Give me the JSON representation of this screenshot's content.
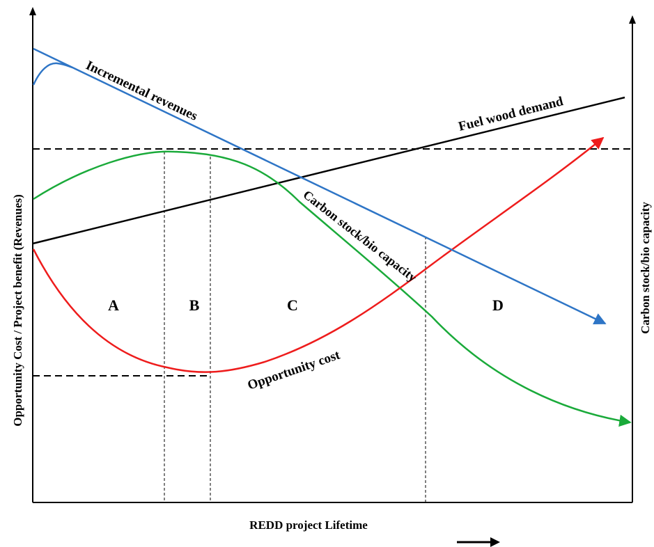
{
  "title": "",
  "axes": {
    "y_left_label": "Opportunity Cost / Project benefit (Revenues)",
    "y_right_label": "Carbon stock/bio capacity",
    "x_label": "REDD project Lifetime"
  },
  "curves": {
    "incremental_revenues": {
      "label": "Incremental revenues",
      "color": "#2e75c6"
    },
    "fuel_wood_demand": {
      "label": "Fuel wood demand",
      "color": "#000000"
    },
    "carbon_stock": {
      "label": "Carbon stock/bio capacity",
      "color": "#1aaa3a"
    },
    "opportunity_cost": {
      "label": "Opportunity cost",
      "color": "#ee1c1c"
    }
  },
  "regions": [
    "A",
    "B",
    "C",
    "D"
  ],
  "icons": {
    "x_direction": "right-arrow-icon"
  }
}
